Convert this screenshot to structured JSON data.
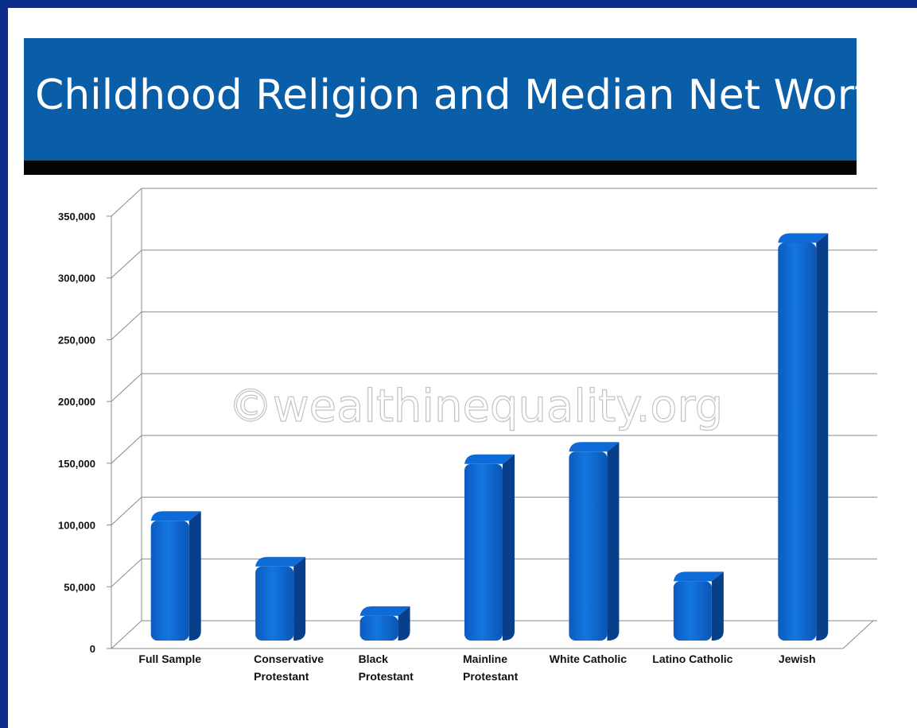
{
  "chart_data": {
    "type": "bar",
    "title": "Childhood Religion and Median Net Worth",
    "categories": [
      [
        "Full Sample"
      ],
      [
        "Conservative",
        "Protestant"
      ],
      [
        "Black",
        "Protestant"
      ],
      [
        "Mainline",
        "Protestant"
      ],
      [
        "White Catholic"
      ],
      [
        "Latino Catholic"
      ],
      [
        "Jewish"
      ]
    ],
    "values": [
      97000,
      60000,
      20000,
      143000,
      153000,
      48000,
      322000
    ],
    "ylim": [
      0,
      350000
    ],
    "yticks": [
      "0",
      "50,000",
      "100,000",
      "150,000",
      "200,000",
      "250,000",
      "300,000",
      "350,000"
    ],
    "grid": true,
    "bar_color": "#0a62c8",
    "watermark": "©wealthinequality.org"
  }
}
